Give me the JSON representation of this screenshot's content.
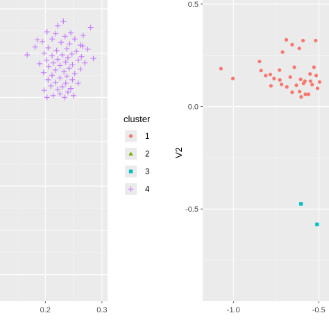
{
  "chart_data": [
    {
      "type": "scatter",
      "panel": "left",
      "xlim": [
        0.12,
        0.31
      ],
      "ylim": [
        -0.16,
        0.52
      ],
      "x_ticks": [
        0.2,
        0.3
      ],
      "x_tick_labels": [
        "0.2",
        "0.3"
      ],
      "grid": true,
      "series": [
        {
          "name": "4",
          "marker": "plus",
          "color": "#C77CFF",
          "points": [
            [
              0.232,
              0.472
            ],
            [
              0.222,
              0.462
            ],
            [
              0.28,
              0.458
            ],
            [
              0.203,
              0.448
            ],
            [
              0.218,
              0.444
            ],
            [
              0.245,
              0.446
            ],
            [
              0.267,
              0.44
            ],
            [
              0.235,
              0.438
            ],
            [
              0.212,
              0.432
            ],
            [
              0.252,
              0.432
            ],
            [
              0.195,
              0.426
            ],
            [
              0.228,
              0.424
            ],
            [
              0.243,
              0.421
            ],
            [
              0.262,
              0.418
            ],
            [
              0.182,
              0.414
            ],
            [
              0.205,
              0.412
            ],
            [
              0.238,
              0.41
            ],
            [
              0.275,
              0.409
            ],
            [
              0.22,
              0.406
            ],
            [
              0.255,
              0.404
            ],
            [
              0.198,
              0.4
            ],
            [
              0.247,
              0.398
            ],
            [
              0.23,
              0.396
            ],
            [
              0.212,
              0.394
            ],
            [
              0.264,
              0.392
            ],
            [
              0.168,
              0.396
            ],
            [
              0.24,
              0.39
            ],
            [
              0.285,
              0.388
            ],
            [
              0.222,
              0.386
            ],
            [
              0.202,
              0.384
            ],
            [
              0.258,
              0.384
            ],
            [
              0.236,
              0.38
            ],
            [
              0.214,
              0.378
            ],
            [
              0.27,
              0.378
            ],
            [
              0.19,
              0.376
            ],
            [
              0.248,
              0.374
            ],
            [
              0.226,
              0.372
            ],
            [
              0.206,
              0.37
            ],
            [
              0.242,
              0.366
            ],
            [
              0.262,
              0.364
            ],
            [
              0.218,
              0.362
            ],
            [
              0.233,
              0.358
            ],
            [
              0.197,
              0.356
            ],
            [
              0.252,
              0.354
            ],
            [
              0.212,
              0.35
            ],
            [
              0.238,
              0.348
            ],
            [
              0.226,
              0.344
            ],
            [
              0.205,
              0.34
            ],
            [
              0.248,
              0.34
            ],
            [
              0.218,
              0.334
            ],
            [
              0.236,
              0.332
            ],
            [
              0.258,
              0.332
            ],
            [
              0.21,
              0.326
            ],
            [
              0.23,
              0.324
            ],
            [
              0.245,
              0.32
            ],
            [
              0.222,
              0.318
            ],
            [
              0.198,
              0.316
            ],
            [
              0.24,
              0.312
            ],
            [
              0.226,
              0.308
            ],
            [
              0.214,
              0.304
            ],
            [
              0.25,
              0.304
            ],
            [
              0.234,
              0.3
            ],
            [
              0.203,
              0.3
            ],
            [
              0.266,
              0.416
            ],
            [
              0.186,
              0.43
            ]
          ]
        }
      ]
    },
    {
      "type": "scatter",
      "panel": "right",
      "xlim": [
        -1.18,
        -0.44
      ],
      "ylim": [
        -0.95,
        0.52
      ],
      "x_ticks": [
        -1.0,
        -0.5
      ],
      "x_tick_labels": [
        "-1.0",
        "-0.5"
      ],
      "y_ticks": [
        0.5,
        0.0,
        -0.5
      ],
      "y_tick_labels": [
        "0.5",
        "0.0",
        "-0.5"
      ],
      "ylabel": "V2",
      "grid": true,
      "series": [
        {
          "name": "1",
          "marker": "circle",
          "color": "#F8766D",
          "points": [
            [
              -1.073,
              0.185
            ],
            [
              -1.003,
              0.137
            ],
            [
              -0.847,
              0.22
            ],
            [
              -0.838,
              0.176
            ],
            [
              -0.811,
              0.151
            ],
            [
              -0.784,
              0.157
            ],
            [
              -0.78,
              0.101
            ],
            [
              -0.762,
              0.137
            ],
            [
              -0.73,
              0.178
            ],
            [
              -0.728,
              0.13
            ],
            [
              -0.718,
              0.108
            ],
            [
              -0.712,
              0.266
            ],
            [
              -0.69,
              0.326
            ],
            [
              -0.687,
              0.096
            ],
            [
              -0.667,
              0.144
            ],
            [
              -0.656,
              0.302
            ],
            [
              -0.656,
              0.07
            ],
            [
              -0.643,
              0.192
            ],
            [
              -0.631,
              0.104
            ],
            [
              -0.614,
              0.284
            ],
            [
              -0.612,
              0.073
            ],
            [
              -0.606,
              0.133
            ],
            [
              -0.603,
              0.047
            ],
            [
              -0.592,
              0.322
            ],
            [
              -0.589,
              0.113
            ],
            [
              -0.581,
              0.124
            ],
            [
              -0.578,
              0.06
            ],
            [
              -0.56,
              0.06
            ],
            [
              -0.551,
              0.159
            ],
            [
              -0.548,
              0.124
            ],
            [
              -0.539,
              0.107
            ],
            [
              -0.528,
              0.192
            ],
            [
              -0.518,
              0.322
            ],
            [
              -0.515,
              0.151
            ],
            [
              -0.507,
              0.089
            ],
            [
              -0.495,
              0.12
            ]
          ]
        },
        {
          "name": "3",
          "marker": "square",
          "color": "#00BFC4",
          "points": [
            [
              -0.604,
              -0.475
            ],
            [
              -0.51,
              -0.575
            ]
          ]
        }
      ]
    }
  ],
  "legend": {
    "title": "cluster",
    "placement": "center-middle",
    "items": [
      {
        "label": "1",
        "marker": "circle",
        "color": "#F8766D"
      },
      {
        "label": "2",
        "marker": "triangle",
        "color": "#7CAE00"
      },
      {
        "label": "3",
        "marker": "square",
        "color": "#00BFC4"
      },
      {
        "label": "4",
        "marker": "plus",
        "color": "#C77CFF"
      }
    ]
  },
  "colors": {
    "panel_background": "#EBEBEB",
    "major_grid": "#FFFFFF",
    "minor_grid": "#F5F5F5",
    "tick_text": "#4D4D4D"
  }
}
